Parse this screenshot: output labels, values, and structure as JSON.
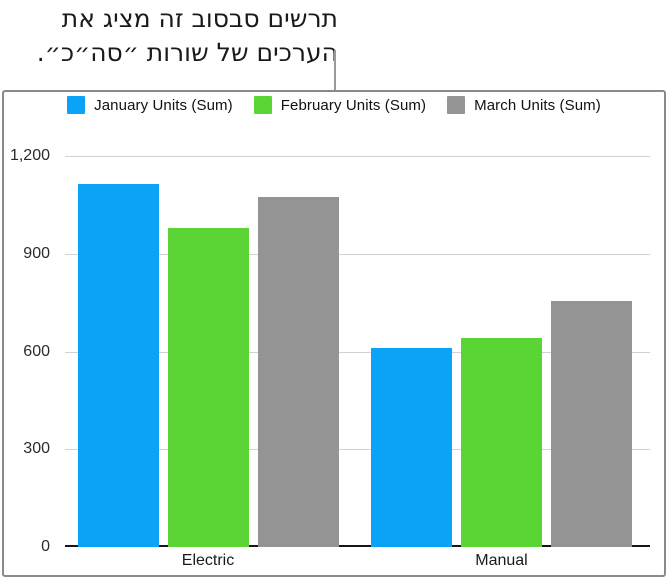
{
  "callout": {
    "line1": "תרשים סבסוב זה מציג את",
    "line2": "הערכים של שורות ״סה״כ״."
  },
  "chart_data": {
    "type": "bar",
    "title": "",
    "categories": [
      "Electric",
      "Manual"
    ],
    "series": [
      {
        "name": "January Units (Sum)",
        "color": "#0aa3f5",
        "values": [
          1115,
          610
        ]
      },
      {
        "name": "February Units (Sum)",
        "color": "#5bd536",
        "values": [
          980,
          640
        ]
      },
      {
        "name": "March Units (Sum)",
        "color": "#949494",
        "values": [
          1075,
          755
        ]
      }
    ],
    "ylim": [
      0,
      1200
    ],
    "y_ticks": [
      {
        "label": "1,200",
        "value": 1200
      },
      {
        "label": "900",
        "value": 900
      },
      {
        "label": "600",
        "value": 600
      },
      {
        "label": "300",
        "value": 300
      },
      {
        "label": "0",
        "value": 0
      }
    ],
    "xlabel": "",
    "ylabel": "",
    "grid": true,
    "gridline_color": "#d2d2d2",
    "axis_color": "#151515",
    "legend_position": "top"
  }
}
